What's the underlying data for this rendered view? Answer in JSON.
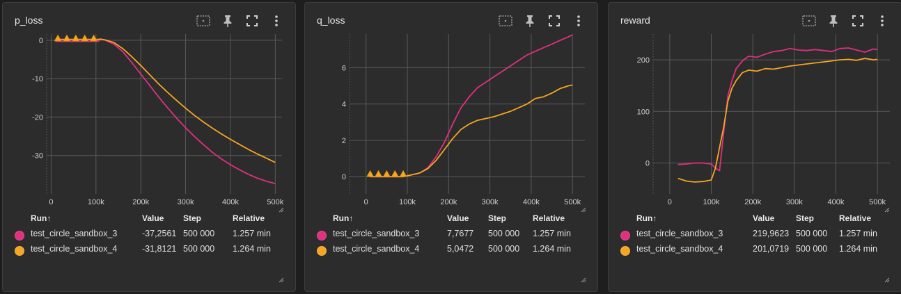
{
  "colors": {
    "series_a": "#e0307f",
    "series_b": "#f5a623",
    "grid": "#5a5a5a",
    "background": "#2c2c2c"
  },
  "icons": [
    "data-selection-icon",
    "pin-icon",
    "fullscreen-icon",
    "more-vert-icon"
  ],
  "table": {
    "header": {
      "run": "Run",
      "sort": "↑",
      "value": "Value",
      "step": "Step",
      "relative": "Relative"
    }
  },
  "panels": [
    {
      "title": "p_loss",
      "rows": [
        {
          "run": "test_circle_sandbox_3",
          "value": "-37,2561",
          "step": "500 000",
          "relative": "1.257 min"
        },
        {
          "run": "test_circle_sandbox_4",
          "value": "-31,8121",
          "step": "500 000",
          "relative": "1.264 min"
        }
      ],
      "chart_data": {
        "type": "line",
        "xlim": [
          -10000,
          515000
        ],
        "ylim": [
          -40,
          1.6
        ],
        "x_ticks": [
          "0",
          "100k",
          "200k",
          "300k",
          "400k",
          "500k"
        ],
        "x_tick_values": [
          0,
          100000,
          200000,
          300000,
          400000,
          500000
        ],
        "y_ticks": [
          "0",
          "-10",
          "-20",
          "-30"
        ],
        "y_tick_values": [
          0,
          -10,
          -20,
          -30
        ],
        "markers": {
          "x": [
            15000,
            35000,
            55000,
            75000,
            95000
          ],
          "y": 0.5
        },
        "series": [
          {
            "x": [
              10000,
              30000,
              50000,
              70000,
              90000,
              105000,
              110000,
              120000,
              140000,
              160000,
              180000,
              200000,
              220000,
              240000,
              260000,
              280000,
              300000,
              320000,
              340000,
              360000,
              380000,
              400000,
              420000,
              440000,
              460000,
              480000,
              500000
            ],
            "y": [
              -0.3,
              -0.3,
              -0.3,
              -0.3,
              -0.3,
              -0.3,
              0.2,
              0,
              -1,
              -3,
              -5.8,
              -8.8,
              -11.8,
              -14.8,
              -17.6,
              -20.3,
              -22.8,
              -25.1,
              -27.2,
              -29.2,
              -30.9,
              -32.4,
              -33.7,
              -34.9,
              -35.9,
              -36.7,
              -37.3
            ]
          },
          {
            "x": [
              10000,
              30000,
              50000,
              70000,
              90000,
              105000,
              110000,
              120000,
              140000,
              160000,
              180000,
              200000,
              220000,
              240000,
              260000,
              280000,
              300000,
              320000,
              340000,
              360000,
              380000,
              400000,
              420000,
              440000,
              460000,
              480000,
              500000
            ],
            "y": [
              0.2,
              0.2,
              0.2,
              0.2,
              0.2,
              0.2,
              0.3,
              0.1,
              -0.6,
              -2.2,
              -4.3,
              -6.6,
              -9,
              -11.4,
              -13.6,
              -15.7,
              -17.7,
              -19.6,
              -21.3,
              -22.9,
              -24.4,
              -25.8,
              -27.1,
              -28.4,
              -29.6,
              -30.7,
              -31.8
            ]
          }
        ]
      }
    },
    {
      "title": "q_loss",
      "rows": [
        {
          "run": "test_circle_sandbox_3",
          "value": "7,7677",
          "step": "500 000",
          "relative": "1.257 min"
        },
        {
          "run": "test_circle_sandbox_4",
          "value": "5,0472",
          "step": "500 000",
          "relative": "1.264 min"
        }
      ],
      "chart_data": {
        "type": "line",
        "xlim": [
          -40000,
          530000
        ],
        "ylim": [
          -0.95,
          7.85
        ],
        "x_ticks": [
          "0",
          "100k",
          "200k",
          "300k",
          "400k",
          "500k"
        ],
        "x_tick_values": [
          0,
          100000,
          200000,
          300000,
          400000,
          500000
        ],
        "y_ticks": [
          "0",
          "2",
          "4",
          "6"
        ],
        "y_tick_values": [
          0,
          2,
          4,
          6
        ],
        "markers": {
          "x": [
            10000,
            30000,
            50000,
            70000,
            90000
          ],
          "y": 0.15
        },
        "series": [
          {
            "x": [
              10000,
              90000,
              110000,
              130000,
              150000,
              170000,
              190000,
              210000,
              230000,
              250000,
              270000,
              290000,
              310000,
              330000,
              350000,
              370000,
              390000,
              410000,
              430000,
              450000,
              470000,
              490000,
              500000
            ],
            "y": [
              0,
              0,
              0.1,
              0.2,
              0.5,
              1.1,
              1.9,
              2.9,
              3.8,
              4.4,
              4.9,
              5.2,
              5.5,
              5.8,
              6.1,
              6.4,
              6.7,
              6.9,
              7.1,
              7.3,
              7.5,
              7.7,
              7.8
            ]
          },
          {
            "x": [
              10000,
              90000,
              110000,
              130000,
              150000,
              170000,
              190000,
              210000,
              230000,
              250000,
              270000,
              290000,
              310000,
              330000,
              350000,
              370000,
              390000,
              410000,
              430000,
              450000,
              470000,
              490000,
              500000
            ],
            "y": [
              0,
              0,
              0.1,
              0.2,
              0.45,
              0.9,
              1.5,
              2.1,
              2.6,
              2.9,
              3.1,
              3.2,
              3.3,
              3.45,
              3.6,
              3.8,
              4.0,
              4.3,
              4.4,
              4.6,
              4.85,
              5.0,
              5.05
            ]
          }
        ]
      }
    },
    {
      "title": "reward",
      "rows": [
        {
          "run": "test_circle_sandbox_3",
          "value": "219,9623",
          "step": "500 000",
          "relative": "1.257 min"
        },
        {
          "run": "test_circle_sandbox_4",
          "value": "201,0719",
          "step": "500 000",
          "relative": "1.264 min"
        }
      ],
      "chart_data": {
        "type": "line",
        "xlim": [
          -40000,
          530000
        ],
        "ylim": [
          -60,
          250
        ],
        "x_ticks": [
          "0",
          "100k",
          "200k",
          "300k",
          "400k",
          "500k"
        ],
        "x_tick_values": [
          0,
          100000,
          200000,
          300000,
          400000,
          500000
        ],
        "y_ticks": [
          "0",
          "100",
          "200"
        ],
        "y_tick_values": [
          0,
          100,
          200
        ],
        "series": [
          {
            "x": [
              20000,
              40000,
              60000,
              80000,
              100000,
              110000,
              120000,
              130000,
              140000,
              150000,
              160000,
              175000,
              190000,
              210000,
              230000,
              250000,
              270000,
              290000,
              310000,
              330000,
              350000,
              370000,
              390000,
              410000,
              430000,
              450000,
              470000,
              490000,
              500000
            ],
            "y": [
              -3,
              -2,
              0,
              0,
              -2,
              -10,
              -15,
              60,
              130,
              160,
              183,
              198,
              207,
              205,
              211,
              216,
              218,
              222,
              219,
              218,
              220,
              218,
              216,
              222,
              223,
              219,
              215,
              221,
              220
            ]
          },
          {
            "x": [
              20000,
              40000,
              60000,
              80000,
              100000,
              110000,
              120000,
              130000,
              140000,
              150000,
              160000,
              175000,
              190000,
              210000,
              230000,
              250000,
              270000,
              290000,
              310000,
              330000,
              350000,
              370000,
              390000,
              410000,
              430000,
              450000,
              470000,
              490000,
              500000
            ],
            "y": [
              -30,
              -35,
              -37,
              -36,
              -33,
              -10,
              30,
              70,
              120,
              145,
              160,
              175,
              180,
              178,
              183,
              182,
              185,
              188,
              190,
              192,
              194,
              196,
              198,
              200,
              201,
              199,
              203,
              200,
              201
            ]
          }
        ]
      }
    }
  ]
}
